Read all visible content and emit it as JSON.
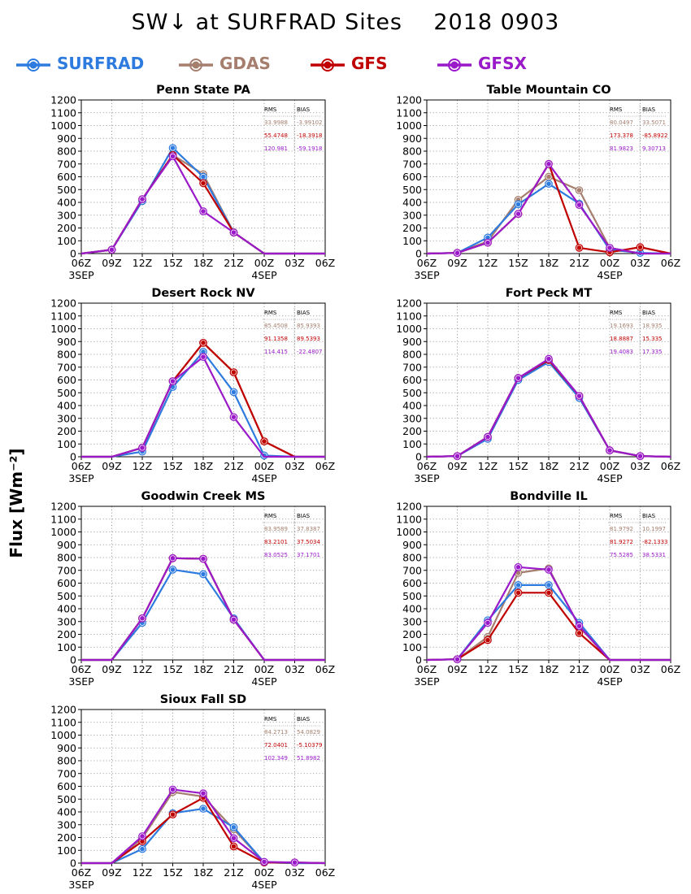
{
  "title": "SW↓ at SURFRAD Sites    2018 0903",
  "ylabel": "Flux [Wm⁻²]",
  "legend": [
    {
      "name": "SURFRAD",
      "color": "#2E7BE0"
    },
    {
      "name": "GDAS",
      "color": "#A57E6E"
    },
    {
      "name": "GFS",
      "color": "#C00000"
    },
    {
      "name": "GFSX",
      "color": "#9A19C9"
    }
  ],
  "stats_header": {
    "rms": "RMS",
    "bias": "BIAS"
  },
  "chart_data": [
    {
      "type": "line",
      "title": "Penn State PA",
      "x": [
        "06Z",
        "09Z",
        "12Z",
        "15Z",
        "18Z",
        "21Z",
        "00Z",
        "03Z",
        "06Z"
      ],
      "date_labels": [
        {
          "index": 0,
          "label": "3SEP"
        },
        {
          "index": 6,
          "label": "4SEP"
        }
      ],
      "yticks": [
        0,
        100,
        200,
        300,
        400,
        500,
        600,
        700,
        800,
        900,
        1000,
        1100,
        1200
      ],
      "ylim": [
        0,
        1200
      ],
      "grid": true,
      "series": [
        {
          "name": "SURFRAD",
          "values": [
            0,
            30,
            410,
            825,
            600,
            165,
            0,
            0,
            0
          ]
        },
        {
          "name": "GDAS",
          "values": [
            0,
            30,
            425,
            770,
            620,
            165,
            0,
            0,
            0
          ]
        },
        {
          "name": "GFS",
          "values": [
            0,
            30,
            425,
            770,
            550,
            165,
            0,
            0,
            0
          ]
        },
        {
          "name": "GFSX",
          "values": [
            0,
            30,
            425,
            760,
            330,
            165,
            0,
            0,
            0
          ]
        }
      ],
      "stats": [
        {
          "series": "GDAS",
          "rms": "33.9988",
          "bias": "-3.99102"
        },
        {
          "series": "GFS",
          "rms": "55.4748",
          "bias": "-18.3918"
        },
        {
          "series": "GFSX",
          "rms": "120.981",
          "bias": "-59.1918"
        }
      ]
    },
    {
      "type": "line",
      "title": "Table Mountain CO",
      "x": [
        "06Z",
        "09Z",
        "12Z",
        "15Z",
        "18Z",
        "21Z",
        "00Z",
        "03Z",
        "06Z"
      ],
      "date_labels": [
        {
          "index": 0,
          "label": "3SEP"
        },
        {
          "index": 6,
          "label": "4SEP"
        }
      ],
      "yticks": [
        0,
        100,
        200,
        300,
        400,
        500,
        600,
        700,
        800,
        900,
        1000,
        1100,
        1200
      ],
      "ylim": [
        0,
        1200
      ],
      "grid": true,
      "series": [
        {
          "name": "SURFRAD",
          "values": [
            0,
            5,
            125,
            385,
            545,
            390,
            30,
            5,
            0
          ]
        },
        {
          "name": "GDAS",
          "values": [
            0,
            5,
            95,
            420,
            600,
            495,
            45,
            0,
            0
          ]
        },
        {
          "name": "GFS",
          "values": [
            0,
            5,
            85,
            310,
            700,
            45,
            10,
            50,
            0
          ]
        },
        {
          "name": "GFSX",
          "values": [
            0,
            5,
            85,
            310,
            700,
            380,
            45,
            0,
            0
          ]
        }
      ],
      "stats": [
        {
          "series": "GDAS",
          "rms": "80.0497",
          "bias": "33.5071"
        },
        {
          "series": "GFS",
          "rms": "173.378",
          "bias": "-85.8922"
        },
        {
          "series": "GFSX",
          "rms": "81.9823",
          "bias": "9.30713"
        }
      ]
    },
    {
      "type": "line",
      "title": "Desert Rock NV",
      "x": [
        "06Z",
        "09Z",
        "12Z",
        "15Z",
        "18Z",
        "21Z",
        "00Z",
        "03Z",
        "06Z"
      ],
      "date_labels": [
        {
          "index": 0,
          "label": "3SEP"
        },
        {
          "index": 6,
          "label": "4SEP"
        }
      ],
      "yticks": [
        0,
        100,
        200,
        300,
        400,
        500,
        600,
        700,
        800,
        900,
        1000,
        1100,
        1200
      ],
      "ylim": [
        0,
        1200
      ],
      "grid": true,
      "series": [
        {
          "name": "SURFRAD",
          "values": [
            0,
            0,
            40,
            545,
            820,
            505,
            10,
            0,
            0
          ]
        },
        {
          "name": "GDAS",
          "values": [
            0,
            0,
            70,
            590,
            890,
            660,
            120,
            0,
            0
          ]
        },
        {
          "name": "GFS",
          "values": [
            0,
            0,
            70,
            590,
            890,
            660,
            120,
            0,
            0
          ]
        },
        {
          "name": "GFSX",
          "values": [
            0,
            0,
            70,
            590,
            780,
            310,
            0,
            0,
            0
          ]
        }
      ],
      "stats": [
        {
          "series": "GDAS",
          "rms": "85.4508",
          "bias": "85.9393"
        },
        {
          "series": "GFS",
          "rms": "91.1358",
          "bias": "89.5393"
        },
        {
          "series": "GFSX",
          "rms": "114.415",
          "bias": "-22.4807"
        }
      ]
    },
    {
      "type": "line",
      "title": "Fort Peck MT",
      "x": [
        "06Z",
        "09Z",
        "12Z",
        "15Z",
        "18Z",
        "21Z",
        "00Z",
        "03Z",
        "06Z"
      ],
      "date_labels": [
        {
          "index": 0,
          "label": "3SEP"
        },
        {
          "index": 6,
          "label": "4SEP"
        }
      ],
      "yticks": [
        0,
        100,
        200,
        300,
        400,
        500,
        600,
        700,
        800,
        900,
        1000,
        1100,
        1200
      ],
      "ylim": [
        0,
        1200
      ],
      "grid": true,
      "series": [
        {
          "name": "SURFRAD",
          "values": [
            0,
            5,
            140,
            600,
            740,
            460,
            50,
            5,
            0
          ]
        },
        {
          "name": "GDAS",
          "values": [
            0,
            5,
            155,
            615,
            755,
            475,
            50,
            5,
            0
          ]
        },
        {
          "name": "GFS",
          "values": [
            0,
            5,
            155,
            615,
            755,
            475,
            50,
            5,
            0
          ]
        },
        {
          "name": "GFSX",
          "values": [
            0,
            5,
            155,
            615,
            765,
            475,
            50,
            5,
            0
          ]
        }
      ],
      "stats": [
        {
          "series": "GDAS",
          "rms": "19.1693",
          "bias": "18.935"
        },
        {
          "series": "GFS",
          "rms": "18.8887",
          "bias": "15.335"
        },
        {
          "series": "GFSX",
          "rms": "19.4083",
          "bias": "17.335"
        }
      ]
    },
    {
      "type": "line",
      "title": "Goodwin Creek MS",
      "x": [
        "06Z",
        "09Z",
        "12Z",
        "15Z",
        "18Z",
        "21Z",
        "00Z",
        "03Z",
        "06Z"
      ],
      "date_labels": [
        {
          "index": 0,
          "label": "3SEP"
        },
        {
          "index": 6,
          "label": "4SEP"
        }
      ],
      "yticks": [
        0,
        100,
        200,
        300,
        400,
        500,
        600,
        700,
        800,
        900,
        1000,
        1100,
        1200
      ],
      "ylim": [
        0,
        1200
      ],
      "grid": true,
      "series": [
        {
          "name": "SURFRAD",
          "values": [
            0,
            0,
            290,
            705,
            670,
            325,
            0,
            0,
            0
          ]
        },
        {
          "name": "GDAS",
          "values": [
            0,
            0,
            325,
            795,
            790,
            315,
            0,
            0,
            0
          ]
        },
        {
          "name": "GFS",
          "values": [
            0,
            0,
            325,
            795,
            790,
            315,
            0,
            0,
            0
          ]
        },
        {
          "name": "GFSX",
          "values": [
            0,
            0,
            325,
            795,
            790,
            315,
            0,
            0,
            0
          ]
        }
      ],
      "stats": [
        {
          "series": "GDAS",
          "rms": "83.9589",
          "bias": "37.8387"
        },
        {
          "series": "GFS",
          "rms": "83.2101",
          "bias": "37.5034"
        },
        {
          "series": "GFSX",
          "rms": "83.0525",
          "bias": "37.1701"
        }
      ]
    },
    {
      "type": "line",
      "title": "Bondville IL",
      "x": [
        "06Z",
        "09Z",
        "12Z",
        "15Z",
        "18Z",
        "21Z",
        "00Z",
        "03Z",
        "06Z"
      ],
      "date_labels": [
        {
          "index": 0,
          "label": "3SEP"
        },
        {
          "index": 6,
          "label": "4SEP"
        }
      ],
      "yticks": [
        0,
        100,
        200,
        300,
        400,
        500,
        600,
        700,
        800,
        900,
        1000,
        1100,
        1200
      ],
      "ylim": [
        0,
        1200
      ],
      "grid": true,
      "series": [
        {
          "name": "SURFRAD",
          "values": [
            0,
            5,
            310,
            585,
            585,
            290,
            0,
            0,
            0
          ]
        },
        {
          "name": "GDAS",
          "values": [
            0,
            5,
            180,
            680,
            715,
            260,
            0,
            0,
            0
          ]
        },
        {
          "name": "GFS",
          "values": [
            0,
            5,
            155,
            525,
            525,
            210,
            0,
            0,
            0
          ]
        },
        {
          "name": "GFSX",
          "values": [
            0,
            5,
            290,
            725,
            705,
            265,
            0,
            0,
            0
          ]
        }
      ],
      "stats": [
        {
          "series": "GDAS",
          "rms": "81.9792",
          "bias": "10.1997"
        },
        {
          "series": "GFS",
          "rms": "81.9272",
          "bias": "-82.1333"
        },
        {
          "series": "GFSX",
          "rms": "75.5285",
          "bias": "38.5331"
        }
      ]
    },
    {
      "type": "line",
      "title": "Sioux Fall SD",
      "x": [
        "06Z",
        "09Z",
        "12Z",
        "15Z",
        "18Z",
        "21Z",
        "00Z",
        "03Z",
        "06Z"
      ],
      "date_labels": [
        {
          "index": 0,
          "label": "3SEP"
        },
        {
          "index": 6,
          "label": "4SEP"
        }
      ],
      "yticks": [
        0,
        100,
        200,
        300,
        400,
        500,
        600,
        700,
        800,
        900,
        1000,
        1100,
        1200
      ],
      "ylim": [
        0,
        1200
      ],
      "grid": true,
      "series": [
        {
          "name": "SURFRAD",
          "values": [
            0,
            0,
            110,
            390,
            425,
            280,
            5,
            0,
            0
          ]
        },
        {
          "name": "GDAS",
          "values": [
            0,
            0,
            195,
            555,
            520,
            265,
            5,
            0,
            0
          ]
        },
        {
          "name": "GFS",
          "values": [
            0,
            0,
            170,
            380,
            510,
            130,
            5,
            5,
            0
          ]
        },
        {
          "name": "GFSX",
          "values": [
            0,
            0,
            210,
            575,
            545,
            195,
            10,
            5,
            0
          ]
        }
      ],
      "stats": [
        {
          "series": "GDAS",
          "rms": "84.2713",
          "bias": "54.0829"
        },
        {
          "series": "GFS",
          "rms": "72.0401",
          "bias": "-5.10379"
        },
        {
          "series": "GFSX",
          "rms": "102.349",
          "bias": "51.8982"
        }
      ]
    }
  ]
}
